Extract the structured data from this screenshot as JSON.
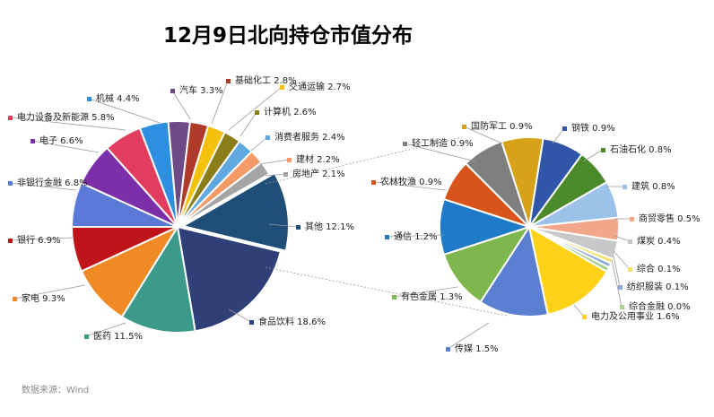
{
  "title": "12月9日北向持仓市值分布",
  "source": "数据来源：Wind",
  "chart_data": {
    "type": "pie",
    "title": "12月9日北向持仓市值分布",
    "main_pie": {
      "slices": [
        {
          "label": "其他",
          "value": 12.1,
          "color": "#1f4e79",
          "display": "其他 12.1%"
        },
        {
          "label": "食品饮料",
          "value": 18.6,
          "color": "#2f3f77",
          "display": "食品饮料 18.6%"
        },
        {
          "label": "医药",
          "value": 11.5,
          "color": "#3c9a8a",
          "display": "医药 11.5%"
        },
        {
          "label": "家电",
          "value": 9.3,
          "color": "#f08a24",
          "display": "家电 9.3%"
        },
        {
          "label": "银行",
          "value": 6.9,
          "color": "#c0141b",
          "display": "银行 6.9%"
        },
        {
          "label": "非银行金融",
          "value": 6.8,
          "color": "#5b79d6",
          "display": "非银行金融 6.8%"
        },
        {
          "label": "电子",
          "value": 6.6,
          "color": "#7b2fa8",
          "display": "电子 6.6%"
        },
        {
          "label": "电力设备及新能源",
          "value": 5.8,
          "color": "#e23c5e",
          "display": "电力设备及新能源 5.8%"
        },
        {
          "label": "机械",
          "value": 4.4,
          "color": "#2e8ee0",
          "display": "机械 4.4%"
        },
        {
          "label": "汽车",
          "value": 3.3,
          "color": "#6e4a86",
          "display": "汽车 3.3%"
        },
        {
          "label": "基础化工",
          "value": 2.8,
          "color": "#b03a2a",
          "display": "基础化工 2.8%"
        },
        {
          "label": "交通运输",
          "value": 2.7,
          "color": "#f4c20d",
          "display": "交通运输 2.7%"
        },
        {
          "label": "计算机",
          "value": 2.6,
          "color": "#8a7d1a",
          "display": "计算机 2.6%"
        },
        {
          "label": "消费者服务",
          "value": 2.4,
          "color": "#5fa8e0",
          "display": "消费者服务 2.4%"
        },
        {
          "label": "建材",
          "value": 2.2,
          "color": "#f39a66",
          "display": "建材 2.2%"
        },
        {
          "label": "房地产",
          "value": 2.1,
          "color": "#a5a5a5",
          "display": "房地产 2.1%"
        }
      ]
    },
    "sub_pie": {
      "slices": [
        {
          "label": "国防军工",
          "value": 0.9,
          "color": "#d6a21a",
          "display": "国防军工 0.9%"
        },
        {
          "label": "钢铁",
          "value": 0.9,
          "color": "#2f56a8",
          "display": "钢铁 0.9%"
        },
        {
          "label": "石油石化",
          "value": 0.8,
          "color": "#4a8a2a",
          "display": "石油石化 0.8%"
        },
        {
          "label": "建筑",
          "value": 0.8,
          "color": "#9cc2ea",
          "display": "建筑 0.8%"
        },
        {
          "label": "商贸零售",
          "value": 0.5,
          "color": "#f2a68a",
          "display": "商贸零售 0.5%"
        },
        {
          "label": "煤炭",
          "value": 0.4,
          "color": "#c8c8c8",
          "display": "煤炭 0.4%"
        },
        {
          "label": "综合",
          "value": 0.1,
          "color": "#f5e066",
          "display": "综合 0.1%"
        },
        {
          "label": "纺织服装",
          "value": 0.1,
          "color": "#8faad8",
          "display": "纺织服装 0.1%"
        },
        {
          "label": "综合金融",
          "value": 0.0,
          "color": "#a8d08d",
          "display": "综合金融 0.0%"
        },
        {
          "label": "电力及公用事业",
          "value": 1.6,
          "color": "#ffd21a",
          "display": "电力及公用事业 1.6%"
        },
        {
          "label": "传媒",
          "value": 1.5,
          "color": "#5b7fd0",
          "display": "传媒 1.5%"
        },
        {
          "label": "有色金属",
          "value": 1.3,
          "color": "#7fb74f",
          "display": "有色金属 1.3%"
        },
        {
          "label": "通信",
          "value": 1.2,
          "color": "#1f7ac8",
          "display": "通信 1.2%"
        },
        {
          "label": "农林牧渔",
          "value": 0.9,
          "color": "#d9541a",
          "display": "农林牧渔 0.9%"
        },
        {
          "label": "轻工制造",
          "value": 0.9,
          "color": "#7f7f7f",
          "display": "轻工制造 0.9%"
        }
      ]
    },
    "legend": "none",
    "labels_with_leader_lines": true
  }
}
